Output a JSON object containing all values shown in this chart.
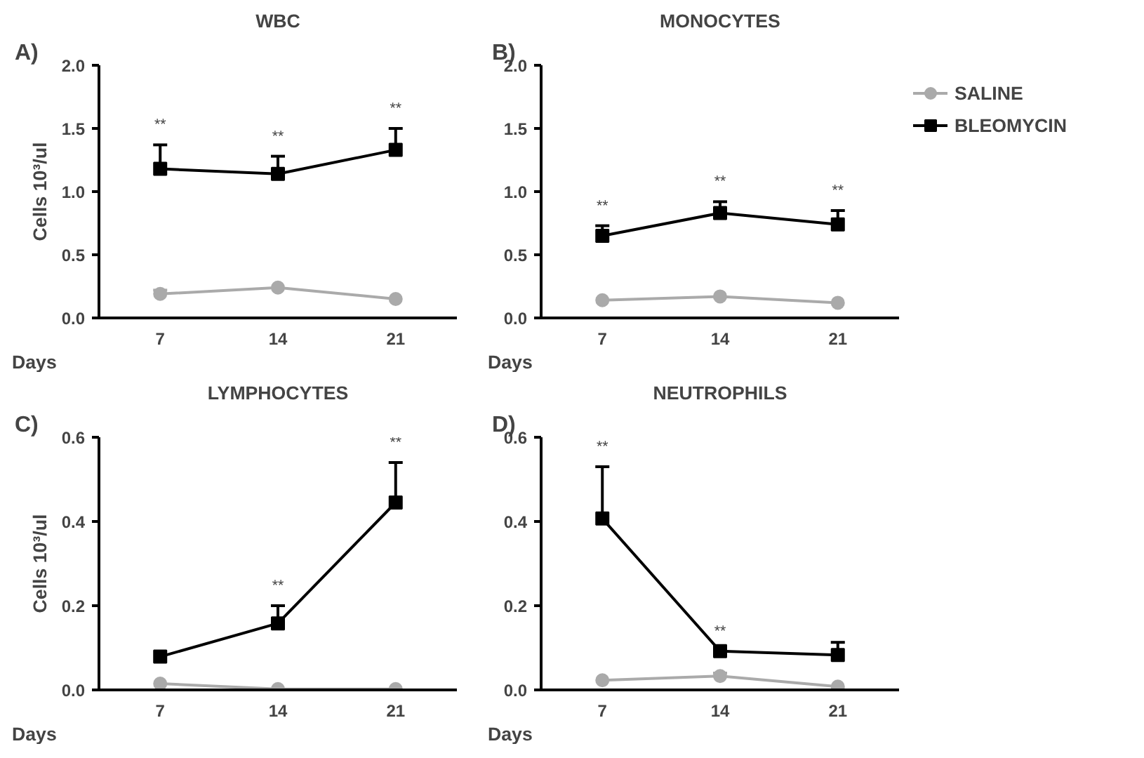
{
  "chart_data": [
    {
      "type": "line",
      "title": "WBC",
      "xlabel": "Days",
      "ylabel": "Cells 10³/ul",
      "categories": [
        "7",
        "14",
        "21"
      ],
      "ylim": [
        0,
        2
      ],
      "yticks": [
        {
          "value": 0,
          "label": "0.0"
        },
        0.5,
        {
          "value": 1,
          "label": "1.0"
        },
        1.5,
        {
          "value": 2,
          "label": "2.0"
        }
      ],
      "grid": false,
      "legend": false,
      "series": [
        {
          "color": "#aaaaaa",
          "marker": "circle",
          "values": [
            0.19,
            0.24,
            0.15
          ],
          "errors": [
            [
              0.19,
              0.22
            ],
            null,
            null
          ]
        },
        {
          "color": "#000000",
          "marker": "square",
          "values": [
            1.18,
            1.14,
            1.33
          ],
          "errors": [
            [
              1.18,
              1.37
            ],
            [
              1.14,
              1.28
            ],
            [
              1.33,
              1.5
            ]
          ]
        }
      ],
      "annotations": [
        "A)",
        {
          "text": "**",
          "x": "7",
          "y": 1.37
        },
        {
          "text": "**",
          "x": "14",
          "y": 1.28
        },
        {
          "text": "**",
          "x": "21",
          "y": 1.5
        }
      ]
    },
    {
      "type": "line",
      "title": "MONOCYTES",
      "xlabel": "Days",
      "categories": [
        "7",
        "14",
        "21"
      ],
      "ylim": [
        0,
        2
      ],
      "yticks": [
        {
          "value": 0,
          "label": "0.0"
        },
        0.5,
        {
          "value": 1,
          "label": "1.0"
        },
        1.5,
        {
          "value": 2,
          "label": "2.0"
        }
      ],
      "grid": false,
      "legend": "right",
      "series": [
        {
          "name": "SALINE",
          "color": "#aaaaaa",
          "marker": "circle",
          "values": [
            0.14,
            0.17,
            0.12
          ]
        },
        {
          "name": "BLEOMYCIN",
          "color": "#000000",
          "marker": "square",
          "values": [
            0.65,
            0.83,
            0.74
          ],
          "errors": [
            [
              0.65,
              0.73
            ],
            [
              0.83,
              0.92
            ],
            [
              0.74,
              0.85
            ]
          ]
        }
      ],
      "annotations": [
        "B)",
        {
          "text": "**",
          "x": "7",
          "y": 0.73
        },
        {
          "text": "**",
          "x": "14",
          "y": 0.92
        },
        {
          "text": "**",
          "x": "21",
          "y": 0.85
        }
      ]
    },
    {
      "type": "line",
      "title": "LYMPHOCYTES",
      "xlabel": "Days",
      "ylabel": "Cells 10³/ul",
      "categories": [
        "7",
        "14",
        "21"
      ],
      "ylim": [
        0,
        0.6
      ],
      "yticks": [
        {
          "value": 0,
          "label": "0.0"
        },
        0.2,
        0.4,
        0.6
      ],
      "grid": false,
      "legend": false,
      "series": [
        {
          "color": "#aaaaaa",
          "marker": "circle",
          "values": [
            0.015,
            0.002,
            0.002
          ]
        },
        {
          "color": "#000000",
          "marker": "square",
          "values": [
            0.079,
            0.158,
            0.445
          ],
          "errors": [
            null,
            [
              0.158,
              0.2
            ],
            [
              0.445,
              0.54
            ]
          ]
        }
      ],
      "annotations": [
        "C)",
        {
          "text": "**",
          "x": "14",
          "y": 0.2
        },
        {
          "text": "**",
          "x": "21",
          "y": 0.54
        }
      ]
    },
    {
      "type": "line",
      "title": "NEUTROPHILS",
      "xlabel": "Days",
      "categories": [
        "7",
        "14",
        "21"
      ],
      "ylim": [
        0,
        0.6
      ],
      "yticks": [
        {
          "value": 0,
          "label": "0.0"
        },
        0.2,
        0.4,
        0.6
      ],
      "grid": false,
      "legend": false,
      "series": [
        {
          "color": "#aaaaaa",
          "marker": "circle",
          "values": [
            0.023,
            0.033,
            0.008
          ],
          "errors": [
            null,
            [
              0.033,
              0.04
            ],
            null
          ]
        },
        {
          "color": "#000000",
          "marker": "square",
          "values": [
            0.407,
            0.092,
            0.083
          ],
          "errors": [
            [
              0.407,
              0.53
            ],
            null,
            [
              0.083,
              0.113
            ]
          ]
        }
      ],
      "annotations": [
        "D)",
        {
          "text": "**",
          "x": "7",
          "y": 0.53
        },
        {
          "text": "**",
          "x": "14",
          "y": 0.092
        }
      ]
    }
  ]
}
